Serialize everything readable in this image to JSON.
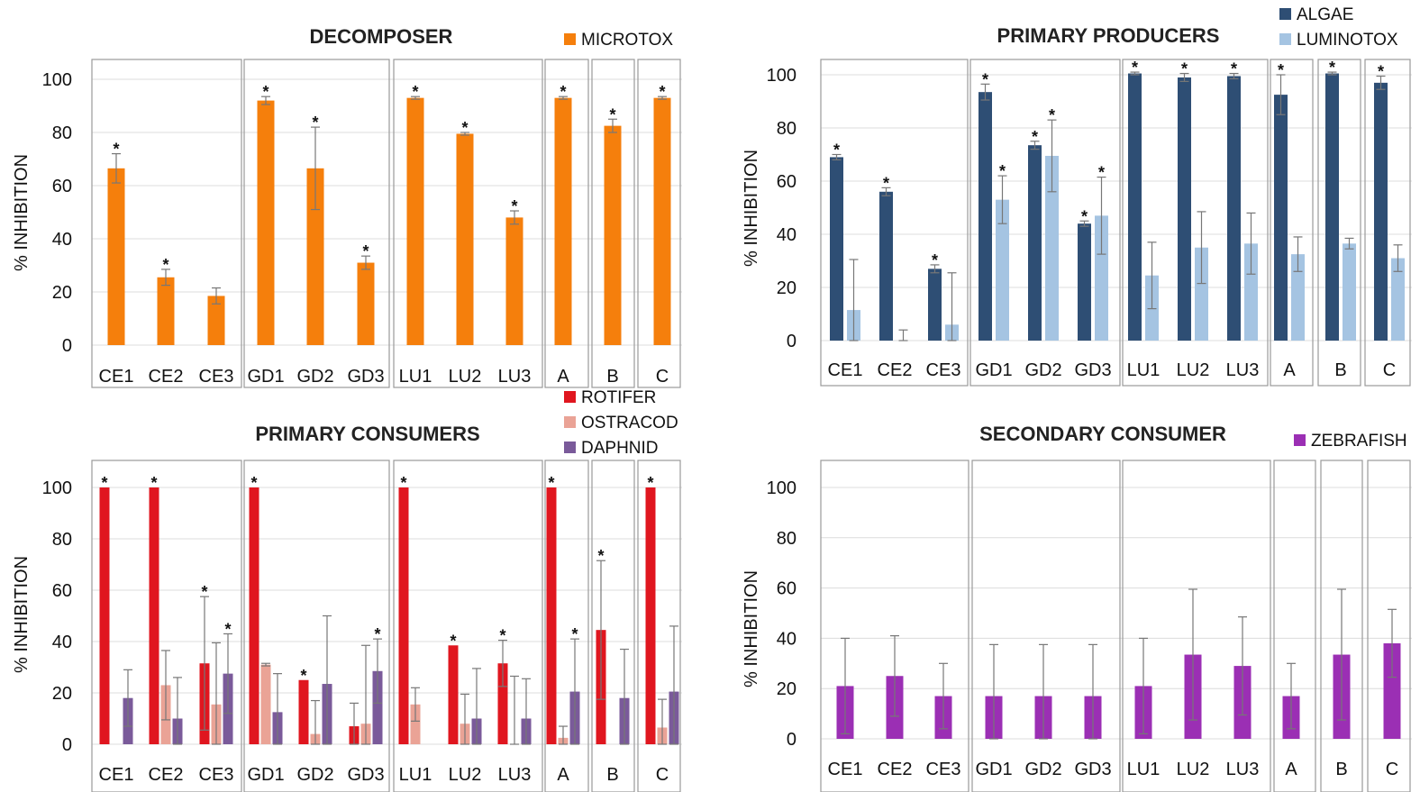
{
  "chart_data": [
    {
      "type": "bar",
      "title": "DECOMPOSER",
      "ylabel": "% INHIBITION",
      "ylim": [
        0,
        100
      ],
      "yticks": [
        "0",
        "20",
        "40",
        "60",
        "80",
        "100"
      ],
      "grid": true,
      "categories": [
        "CE1",
        "CE2",
        "CE3",
        "GD1",
        "GD2",
        "GD3",
        "LU1",
        "LU2",
        "LU3",
        "A",
        "B",
        "C"
      ],
      "series": [
        {
          "name": "MICROTOX",
          "color": "#f57f0c",
          "values": [
            66.5,
            25.5,
            18.5,
            92,
            66.5,
            31,
            93,
            79.5,
            48,
            93,
            82.5,
            93
          ],
          "errors": [
            5.5,
            3,
            3,
            1.5,
            15.5,
            2.5,
            0.5,
            0.5,
            2.5,
            0.5,
            2.5,
            0.5
          ],
          "significant": [
            true,
            true,
            false,
            true,
            true,
            true,
            true,
            true,
            true,
            true,
            true,
            true
          ]
        }
      ]
    },
    {
      "type": "bar",
      "title": "PRIMARY PRODUCERS",
      "ylabel": "% INHIBITION",
      "ylim": [
        0,
        100
      ],
      "yticks": [
        "0",
        "20",
        "40",
        "60",
        "80",
        "100"
      ],
      "grid": true,
      "categories": [
        "CE1",
        "CE2",
        "CE3",
        "GD1",
        "GD2",
        "GD3",
        "LU1",
        "LU2",
        "LU3",
        "A",
        "B",
        "C"
      ],
      "series": [
        {
          "name": "ALGAE",
          "color": "#2e4e74",
          "values": [
            69,
            56,
            27,
            93.5,
            73.5,
            44,
            100.5,
            99,
            99.5,
            92.5,
            100.5,
            97
          ],
          "errors": [
            1,
            1.5,
            1.5,
            3,
            1.5,
            1,
            0.5,
            1.5,
            1,
            7.5,
            0.5,
            2.5
          ],
          "significant": [
            true,
            true,
            true,
            true,
            true,
            true,
            true,
            true,
            true,
            true,
            true,
            true
          ]
        },
        {
          "name": "LUMINOTOX",
          "color": "#a5c4e2",
          "values": [
            11.5,
            0,
            6,
            53,
            69.5,
            47,
            24.5,
            35,
            36.5,
            32.5,
            36.5,
            31
          ],
          "errors": [
            19,
            4,
            19.5,
            9,
            13.5,
            14.5,
            12.5,
            13.5,
            11.5,
            6.5,
            2,
            5
          ],
          "significant": [
            false,
            false,
            false,
            true,
            true,
            true,
            false,
            false,
            false,
            false,
            false,
            false
          ]
        }
      ]
    },
    {
      "type": "bar",
      "title": "PRIMARY CONSUMERS",
      "ylabel": "% INHIBITION",
      "ylim": [
        0,
        100
      ],
      "yticks": [
        "0",
        "20",
        "40",
        "60",
        "80",
        "100"
      ],
      "grid": true,
      "categories": [
        "CE1",
        "CE2",
        "CE3",
        "GD1",
        "GD2",
        "GD3",
        "LU1",
        "LU2",
        "LU3",
        "A",
        "B",
        "C"
      ],
      "series": [
        {
          "name": "ROTIFER",
          "color": "#e0161f",
          "values": [
            100,
            100,
            31.5,
            100,
            25,
            7,
            100,
            38.5,
            31.5,
            100,
            44.5,
            100
          ],
          "errors": [
            0,
            0,
            26,
            0,
            0,
            9,
            0,
            0,
            9,
            0,
            27,
            0
          ],
          "significant": [
            true,
            true,
            true,
            true,
            true,
            false,
            true,
            true,
            true,
            true,
            true,
            true
          ]
        },
        {
          "name": "OSTRACOD",
          "color": "#eaa396",
          "values": [
            0,
            23,
            15.5,
            31,
            4,
            8,
            15.5,
            8,
            0,
            2.5,
            0,
            6.5
          ],
          "errors": [
            0,
            13.5,
            24,
            0.5,
            13,
            30.5,
            6.5,
            11.5,
            26.5,
            4.5,
            0,
            11
          ],
          "significant": [
            false,
            false,
            false,
            false,
            false,
            false,
            false,
            false,
            false,
            false,
            false,
            false
          ]
        },
        {
          "name": "DAPHNID",
          "color": "#7a5a9a",
          "values": [
            18,
            10,
            27.5,
            12.5,
            23.5,
            28.5,
            0,
            10,
            10,
            20.5,
            18,
            20.5
          ],
          "errors": [
            11,
            16,
            15.5,
            15,
            26.5,
            12.5,
            0,
            19.5,
            15.5,
            20.5,
            19,
            25.5
          ],
          "significant": [
            false,
            false,
            true,
            false,
            false,
            true,
            false,
            false,
            false,
            true,
            false,
            false
          ]
        }
      ]
    },
    {
      "type": "bar",
      "title": "SECONDARY CONSUMER",
      "ylabel": "% INHIBITION",
      "ylim": [
        0,
        100
      ],
      "yticks": [
        "0",
        "20",
        "40",
        "60",
        "80",
        "100"
      ],
      "grid": true,
      "categories": [
        "CE1",
        "CE2",
        "CE3",
        "GD1",
        "GD2",
        "GD3",
        "LU1",
        "LU2",
        "LU3",
        "A",
        "B",
        "C"
      ],
      "series": [
        {
          "name": "ZEBRAFISH",
          "color": "#9b2fb4",
          "values": [
            21,
            25,
            17,
            17,
            17,
            17,
            21,
            33.5,
            29,
            17,
            33.5,
            38
          ],
          "errors": [
            19,
            16,
            13,
            20.5,
            20.5,
            20.5,
            19,
            26,
            19.5,
            13,
            26,
            13.5
          ],
          "significant": [
            false,
            false,
            false,
            false,
            false,
            false,
            false,
            false,
            false,
            false,
            false,
            false
          ]
        }
      ]
    }
  ]
}
